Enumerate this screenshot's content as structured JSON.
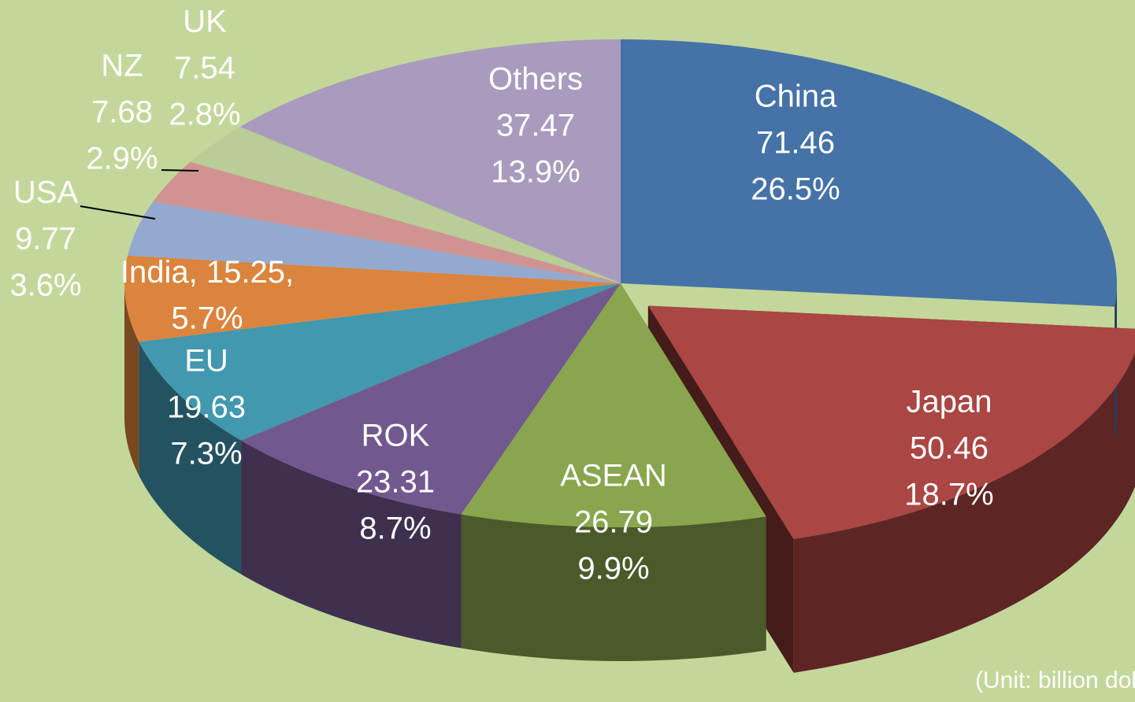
{
  "chart_data": {
    "type": "pie3d",
    "categories": [
      "China",
      "Japan",
      "ASEAN",
      "ROK",
      "EU",
      "India,",
      "USA",
      "NZ",
      "UK",
      "Others"
    ],
    "values": [
      71.46,
      50.46,
      26.79,
      23.31,
      19.63,
      15.25,
      9.77,
      7.68,
      7.54,
      37.47
    ],
    "value_labels": [
      "71.46",
      "50.46",
      "26.79",
      "23.31",
      "19.63",
      "15.25,",
      "9.77",
      "7.68",
      "7.54",
      "37.47"
    ],
    "percent_labels": [
      "26.5%",
      "18.7%",
      "9.9%",
      "8.7%",
      "7.3%",
      "5.7%",
      "3.6%",
      "2.9%",
      "2.8%",
      "13.9%"
    ],
    "colors": [
      "#4572a7",
      "#aa4643",
      "#89a54e",
      "#71588f",
      "#4198af",
      "#db843d",
      "#93a9cf",
      "#d09392",
      "#b9cd96",
      "#a99bbd"
    ],
    "exploded": "Japan",
    "annotation": "(Unit: billion dollars)"
  }
}
